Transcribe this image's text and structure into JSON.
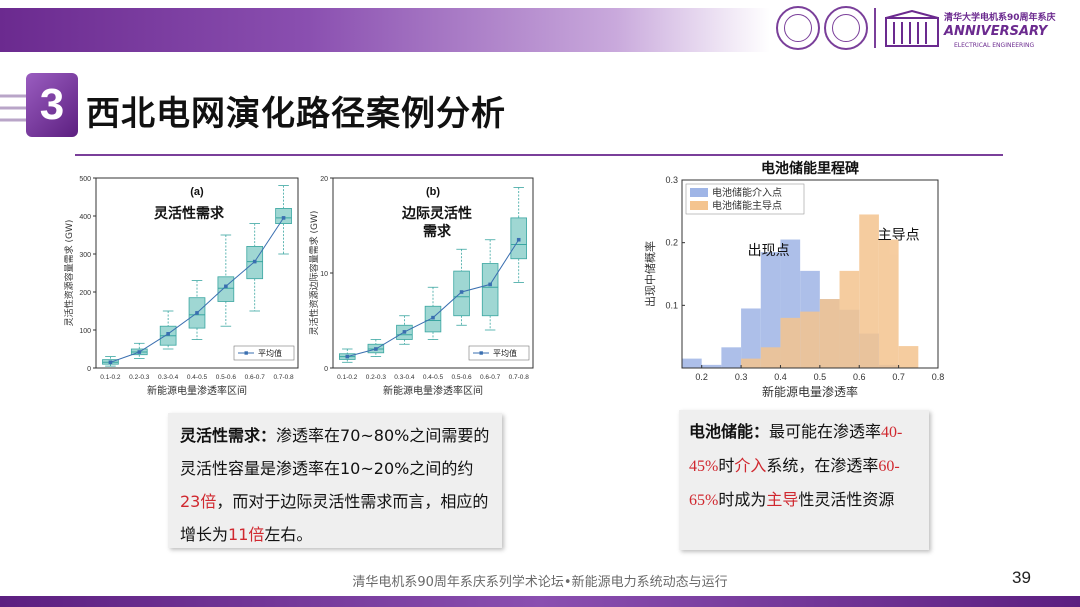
{
  "header": {
    "anniversary_line1": "清华大学电机系90周年系庆",
    "anniversary_line2": "ANNIVERSARY",
    "anniversary_line3": "ELECTRICAL ENGINEERING"
  },
  "section": {
    "number": "3"
  },
  "title": "西北电网演化路径案例分析",
  "chart_data": [
    {
      "type": "boxplot",
      "panel_label": "(a)",
      "title": "灵活性需求",
      "ylabel": "灵活性资源容量需求 (GW)",
      "xlabel": "新能源电量渗透率区间",
      "ylim": [
        0,
        500
      ],
      "yticks": [
        0,
        100,
        200,
        300,
        400,
        500
      ],
      "categories": [
        "0.1-0.2",
        "0.2-0.3",
        "0.3-0.4",
        "0.4-0.5",
        "0.5-0.6",
        "0.6-0.7",
        "0.7-0.8"
      ],
      "boxes": [
        {
          "min": 5,
          "q1": 10,
          "median": 15,
          "q3": 22,
          "max": 30
        },
        {
          "min": 25,
          "q1": 35,
          "median": 42,
          "q3": 50,
          "max": 65
        },
        {
          "min": 50,
          "q1": 60,
          "median": 85,
          "q3": 110,
          "max": 150
        },
        {
          "min": 75,
          "q1": 105,
          "median": 140,
          "q3": 185,
          "max": 230
        },
        {
          "min": 110,
          "q1": 175,
          "median": 210,
          "q3": 240,
          "max": 350
        },
        {
          "min": 150,
          "q1": 235,
          "median": 280,
          "q3": 320,
          "max": 380
        },
        {
          "min": 300,
          "q1": 380,
          "median": 395,
          "q3": 420,
          "max": 480
        }
      ],
      "mean_line": [
        15,
        42,
        90,
        145,
        215,
        280,
        395
      ],
      "legend": [
        "平均值"
      ],
      "grid": false,
      "legend_placement": "bottom-right"
    },
    {
      "type": "boxplot",
      "panel_label": "(b)",
      "title": "边际灵活性需求",
      "ylabel": "灵活性资源边际容量需求 (GW)",
      "xlabel": "新能源电量渗透率区间",
      "ylim": [
        0,
        20
      ],
      "yticks": [
        0,
        10,
        20
      ],
      "categories": [
        "0.1-0.2",
        "0.2-0.3",
        "0.3-0.4",
        "0.4-0.5",
        "0.5-0.6",
        "0.6-0.7",
        "0.7-0.8"
      ],
      "boxes": [
        {
          "min": 0.6,
          "q1": 0.9,
          "median": 1.2,
          "q3": 1.5,
          "max": 2
        },
        {
          "min": 1.2,
          "q1": 1.6,
          "median": 2.0,
          "q3": 2.5,
          "max": 3
        },
        {
          "min": 2.5,
          "q1": 3.0,
          "median": 3.5,
          "q3": 4.5,
          "max": 5.5
        },
        {
          "min": 3.0,
          "q1": 3.8,
          "median": 5.0,
          "q3": 6.5,
          "max": 8.5
        },
        {
          "min": 4.5,
          "q1": 5.5,
          "median": 7.5,
          "q3": 10.2,
          "max": 12.5
        },
        {
          "min": 4.0,
          "q1": 5.5,
          "median": 8.5,
          "q3": 11.0,
          "max": 13.5
        },
        {
          "min": 9.0,
          "q1": 11.5,
          "median": 13.0,
          "q3": 15.8,
          "max": 19
        }
      ],
      "mean_line": [
        1.2,
        2.0,
        3.8,
        5.3,
        8.0,
        8.8,
        13.5
      ],
      "legend": [
        "平均值"
      ],
      "grid": false,
      "legend_placement": "bottom-right"
    },
    {
      "type": "histogram",
      "title": "电池储能里程碑",
      "ylabel": "出现中储概率",
      "xlabel": "新能源电量渗透率",
      "xlim": [
        0.15,
        0.8
      ],
      "ylim": [
        0,
        0.3
      ],
      "xticks": [
        0.2,
        0.3,
        0.4,
        0.5,
        0.6,
        0.7,
        0.8
      ],
      "yticks": [
        0.1,
        0.2,
        0.3
      ],
      "bin_edges": [
        0.15,
        0.2,
        0.25,
        0.3,
        0.35,
        0.4,
        0.45,
        0.5,
        0.55,
        0.6,
        0.65,
        0.7,
        0.75
      ],
      "series": [
        {
          "name": "电池储能介入点",
          "color": "#9fb5e6",
          "values": [
            0.015,
            0.005,
            0.033,
            0.095,
            0.185,
            0.205,
            0.155,
            0.11,
            0.093,
            0.055,
            0.005,
            0.0
          ]
        },
        {
          "name": "电池储能主导点",
          "color": "#f4c48f",
          "values": [
            0.0,
            0.0,
            0.0,
            0.015,
            0.033,
            0.08,
            0.09,
            0.11,
            0.155,
            0.245,
            0.205,
            0.035
          ]
        }
      ],
      "annotations": [
        {
          "text": "出现点",
          "x": 0.37,
          "y": 0.18
        },
        {
          "text": "主导点",
          "x": 0.7,
          "y": 0.205
        }
      ],
      "legend_placement": "top-left",
      "grid": false
    }
  ],
  "box_left": {
    "lead": "灵活性需求：",
    "t1": "渗透率在70~80%之间需要的灵活性容量是渗透率在10~20%之间的约",
    "hl1": "23倍",
    "t2": "，而对于边际灵活性需求而言，相应的增长为",
    "hl2": "11倍",
    "t3": "左右。"
  },
  "box_right": {
    "lead": "电池储能：",
    "t1": "最可能在渗透率",
    "hl1": "40-45%",
    "t2": "时",
    "hl2": "介入",
    "t3": "系统，在渗透率",
    "hl3": "60-65%",
    "t4": "时成为",
    "hl4": "主导",
    "t5": "性灵活性资源"
  },
  "footer": {
    "text": "清华电机系90周年系庆系列学术论坛•新能源电力系统动态与运行",
    "page": "39"
  },
  "colors": {
    "purple": "#6b2a8f",
    "box_fill": "#9fd7d3",
    "box_stroke": "#3aa6a1",
    "mean_line": "#3a6fb0",
    "highlight_red": "#d0282f"
  }
}
